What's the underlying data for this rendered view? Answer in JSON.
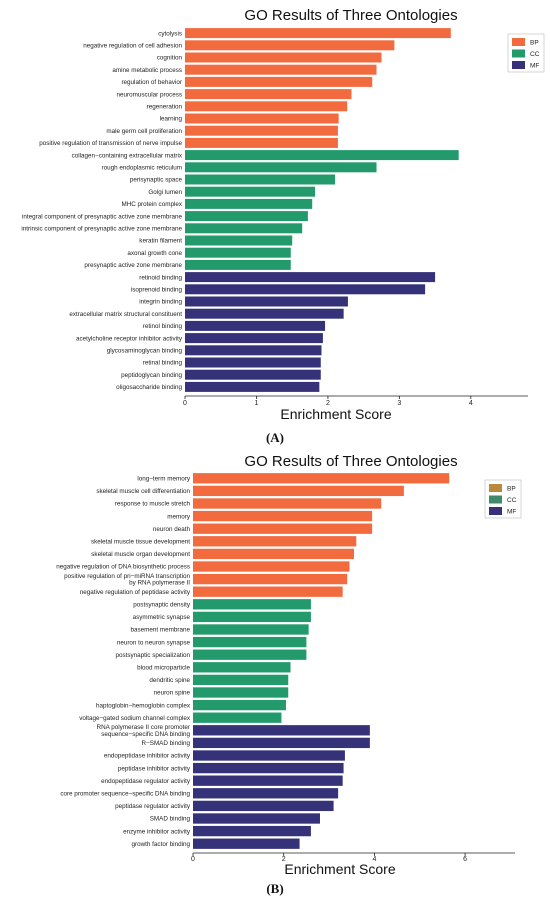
{
  "chart_data": [
    {
      "type": "bar",
      "orientation": "horizontal",
      "panel_label": "(A)",
      "title": "GO Results of Three Ontologies",
      "xlabel": "Enrichment Score",
      "ylabel": "",
      "xlim": [
        0,
        4.8
      ],
      "xticks": [
        "0",
        "1",
        "2",
        "3",
        "4"
      ],
      "legend_position": "top-right",
      "series_colors": {
        "BP": "#f26b3f",
        "CC": "#239a6c",
        "MF": "#36327a"
      },
      "legend": [
        {
          "name": "BP",
          "color": "#f26b3f"
        },
        {
          "name": "CC",
          "color": "#239a6c"
        },
        {
          "name": "MF",
          "color": "#36327a"
        }
      ],
      "bars": [
        {
          "label": "cytolysis",
          "value": 3.72,
          "group": "BP"
        },
        {
          "label": "negative regulation of cell adhesion",
          "value": 2.93,
          "group": "BP"
        },
        {
          "label": "cognition",
          "value": 2.75,
          "group": "BP"
        },
        {
          "label": "amine metabolic process",
          "value": 2.68,
          "group": "BP"
        },
        {
          "label": "regulation of behavior",
          "value": 2.62,
          "group": "BP"
        },
        {
          "label": "neuromuscular process",
          "value": 2.33,
          "group": "BP"
        },
        {
          "label": "regeneration",
          "value": 2.27,
          "group": "BP"
        },
        {
          "label": "learning",
          "value": 2.15,
          "group": "BP"
        },
        {
          "label": "male germ cell proliferation",
          "value": 2.14,
          "group": "BP"
        },
        {
          "label": "positive regulation of transmission of nerve impulse",
          "value": 2.14,
          "group": "BP"
        },
        {
          "label": "collagen−containing extracellular matrix",
          "value": 3.83,
          "group": "CC"
        },
        {
          "label": "rough endoplasmic reticulum",
          "value": 2.68,
          "group": "CC"
        },
        {
          "label": "perisynaptic space",
          "value": 2.1,
          "group": "CC"
        },
        {
          "label": "Golgi lumen",
          "value": 1.82,
          "group": "CC"
        },
        {
          "label": "MHC protein complex",
          "value": 1.78,
          "group": "CC"
        },
        {
          "label": "integral component of presynaptic active zone membrane",
          "value": 1.72,
          "group": "CC"
        },
        {
          "label": "intrinsic component of presynaptic active zone membrane",
          "value": 1.64,
          "group": "CC"
        },
        {
          "label": "keratin filament",
          "value": 1.5,
          "group": "CC"
        },
        {
          "label": "axonal growth cone",
          "value": 1.48,
          "group": "CC"
        },
        {
          "label": "presynaptic active zone membrane",
          "value": 1.48,
          "group": "CC"
        },
        {
          "label": "retinoid binding",
          "value": 3.5,
          "group": "MF"
        },
        {
          "label": "isoprenoid binding",
          "value": 3.36,
          "group": "MF"
        },
        {
          "label": "integrin binding",
          "value": 2.28,
          "group": "MF"
        },
        {
          "label": "extracellular matrix structural constituent",
          "value": 2.22,
          "group": "MF"
        },
        {
          "label": "retinol binding",
          "value": 1.96,
          "group": "MF"
        },
        {
          "label": "acetylcholine receptor inhibitor activity",
          "value": 1.93,
          "group": "MF"
        },
        {
          "label": "glycosaminoglycan binding",
          "value": 1.91,
          "group": "MF"
        },
        {
          "label": "retinal binding",
          "value": 1.9,
          "group": "MF"
        },
        {
          "label": "peptidoglycan binding",
          "value": 1.9,
          "group": "MF"
        },
        {
          "label": "oligosaccharide binding",
          "value": 1.88,
          "group": "MF"
        }
      ]
    },
    {
      "type": "bar",
      "orientation": "horizontal",
      "panel_label": "(B)",
      "title": "GO Results of Three Ontologies",
      "xlabel": "Enrichment Score",
      "ylabel": "",
      "xlim": [
        0,
        7.1
      ],
      "xticks": [
        "0",
        "2",
        "4",
        "6"
      ],
      "legend_position": "top-right",
      "series_colors": {
        "BP": "#f26b3f",
        "CC": "#239a6c",
        "MF": "#36327a"
      },
      "legend": [
        {
          "name": "BP",
          "color": "#b98a3c"
        },
        {
          "name": "CC",
          "color": "#3f8a68"
        },
        {
          "name": "MF",
          "color": "#36327a"
        }
      ],
      "bars": [
        {
          "label": "long−term memory",
          "value": 5.65,
          "group": "BP"
        },
        {
          "label": "skeletal muscle cell differentiation",
          "value": 4.65,
          "group": "BP"
        },
        {
          "label": "response to muscle stretch",
          "value": 4.15,
          "group": "BP"
        },
        {
          "label": "memory",
          "value": 3.95,
          "group": "BP"
        },
        {
          "label": "neuron death",
          "value": 3.95,
          "group": "BP"
        },
        {
          "label": "skeletal muscle tissue development",
          "value": 3.6,
          "group": "BP"
        },
        {
          "label": "skeletal muscle organ development",
          "value": 3.55,
          "group": "BP"
        },
        {
          "label": "negative regulation of DNA biosynthetic process",
          "value": 3.45,
          "group": "BP"
        },
        {
          "label": "positive regulation of pri−miRNA transcription by RNA polymerase II",
          "value": 3.4,
          "group": "BP"
        },
        {
          "label": "negative regulation of peptidase activity",
          "value": 3.3,
          "group": "BP"
        },
        {
          "label": "postsynaptic density",
          "value": 2.6,
          "group": "CC"
        },
        {
          "label": "asymmetric synapse",
          "value": 2.6,
          "group": "CC"
        },
        {
          "label": "basement membrane",
          "value": 2.55,
          "group": "CC"
        },
        {
          "label": "neuron to neuron synapse",
          "value": 2.5,
          "group": "CC"
        },
        {
          "label": "postsynaptic specialization",
          "value": 2.5,
          "group": "CC"
        },
        {
          "label": "blood microparticle",
          "value": 2.15,
          "group": "CC"
        },
        {
          "label": "dendritic spine",
          "value": 2.1,
          "group": "CC"
        },
        {
          "label": "neuron spine",
          "value": 2.1,
          "group": "CC"
        },
        {
          "label": "haptoglobin−hemoglobin complex",
          "value": 2.05,
          "group": "CC"
        },
        {
          "label": "voltage−gated sodium channel complex",
          "value": 1.95,
          "group": "CC"
        },
        {
          "label": "RNA polymerase II core promoter sequence−specific DNA binding",
          "value": 3.9,
          "group": "MF"
        },
        {
          "label": "R−SMAD binding",
          "value": 3.9,
          "group": "MF"
        },
        {
          "label": "endopeptidase inhibitor activity",
          "value": 3.35,
          "group": "MF"
        },
        {
          "label": "peptidase inhibitor activity",
          "value": 3.32,
          "group": "MF"
        },
        {
          "label": "endopeptidase regulator activity",
          "value": 3.3,
          "group": "MF"
        },
        {
          "label": "core promoter sequence−specific DNA binding",
          "value": 3.2,
          "group": "MF"
        },
        {
          "label": "peptidase regulator activity",
          "value": 3.1,
          "group": "MF"
        },
        {
          "label": "SMAD binding",
          "value": 2.8,
          "group": "MF"
        },
        {
          "label": "enzyme inhibitor activity",
          "value": 2.6,
          "group": "MF"
        },
        {
          "label": "growth factor binding",
          "value": 2.35,
          "group": "MF"
        }
      ]
    }
  ]
}
